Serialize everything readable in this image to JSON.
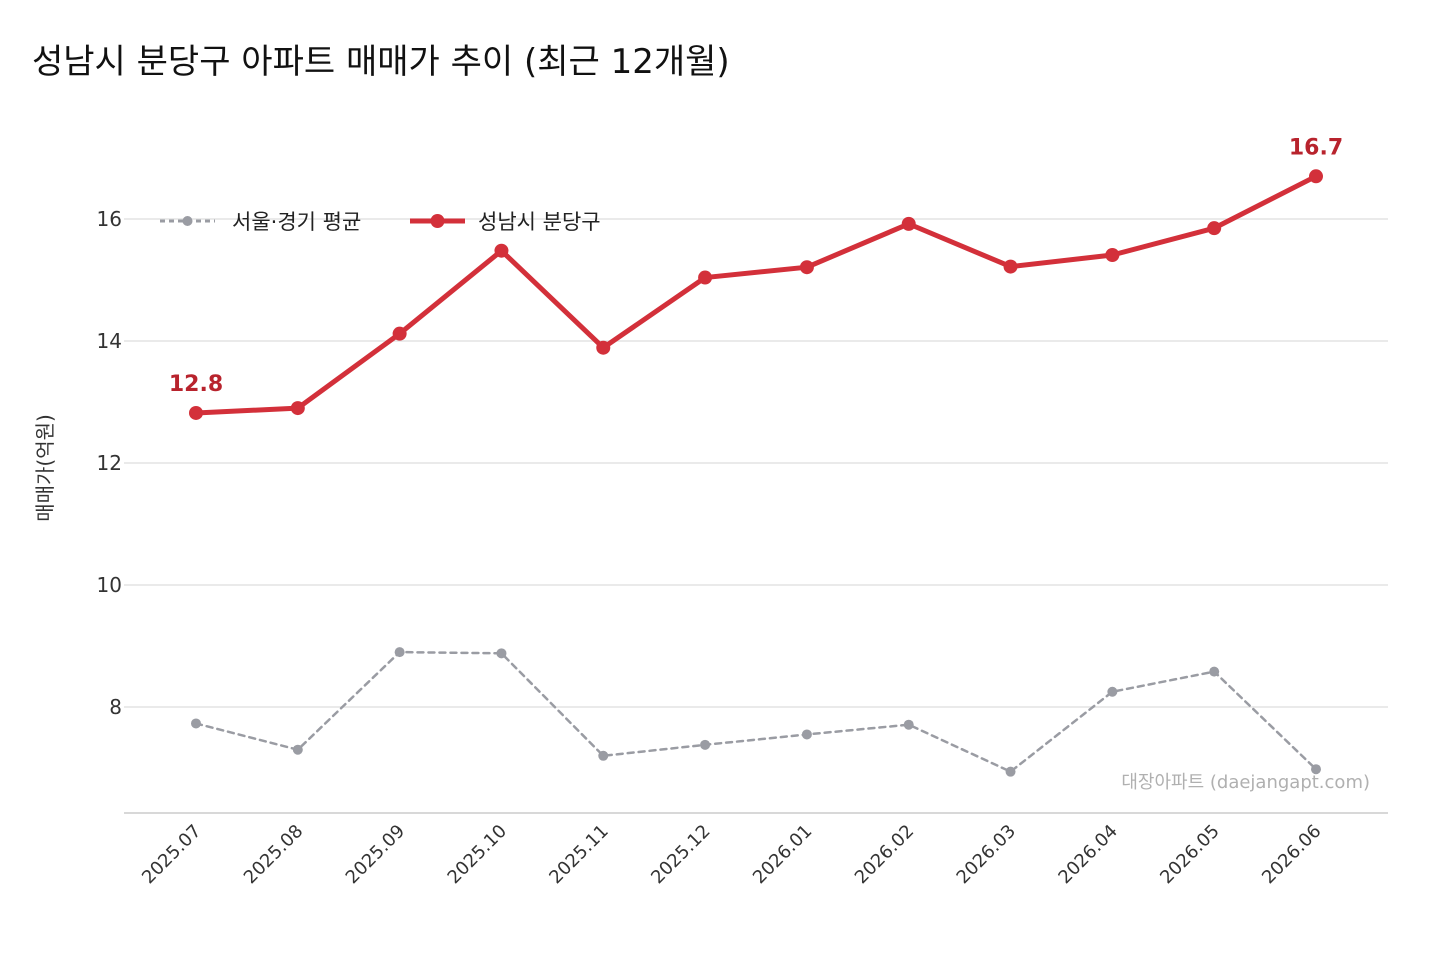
{
  "chart_data": {
    "type": "line",
    "title": "성남시 분당구 아파트 매매가 추이 (최근 12개월)",
    "ylabel": "매매가(억원)",
    "xlabel": "",
    "categories": [
      "2025.07",
      "2025.08",
      "2025.09",
      "2025.10",
      "2025.11",
      "2025.12",
      "2026.01",
      "2026.02",
      "2026.03",
      "2026.04",
      "2026.05",
      "2026.06"
    ],
    "ylim": [
      6.3,
      17.8
    ],
    "yticks": [
      8,
      10,
      12,
      14,
      16
    ],
    "grid": "horizontal",
    "legend_position": "top-left",
    "series": [
      {
        "name": "서울·경기 평균",
        "color": "#9a9ca3",
        "style": "dashed",
        "values": [
          7.73,
          7.3,
          8.9,
          8.88,
          7.2,
          7.38,
          7.55,
          7.71,
          6.94,
          8.25,
          8.58,
          6.98
        ]
      },
      {
        "name": "성남시 분당구",
        "color": "#d3303a",
        "style": "solid",
        "values": [
          12.82,
          12.9,
          14.12,
          15.48,
          13.89,
          15.04,
          15.21,
          15.92,
          15.22,
          15.41,
          15.85,
          16.7
        ]
      }
    ],
    "annotations": [
      {
        "series": 1,
        "index": 0,
        "text": "12.8"
      },
      {
        "series": 1,
        "index": 11,
        "text": "16.7"
      }
    ],
    "watermark": "대장아파트 (daejangapt.com)"
  }
}
